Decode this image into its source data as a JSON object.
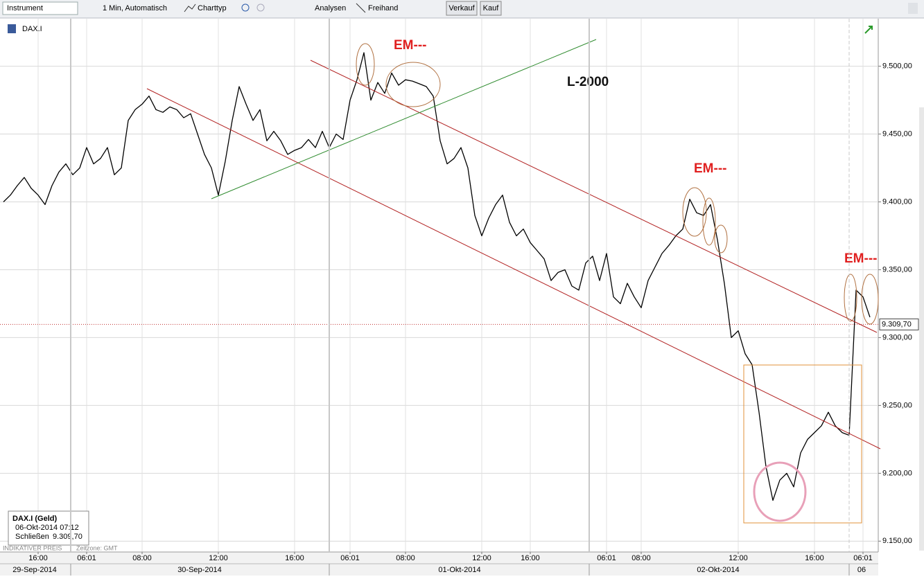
{
  "toolbar": {
    "instrument": "Instrument",
    "interval": "1 Min, Automatisch",
    "chart_type": "Charttyp",
    "analyses": "Analysen",
    "freehand": "Freihand",
    "sell": "Verkauf",
    "buy": "Kauf"
  },
  "chart_data": {
    "type": "line",
    "instrument": "DAX.I",
    "categories": [
      null,
      null,
      null,
      null,
      null,
      "16:00",
      null,
      null,
      null,
      null,
      null,
      null,
      "06:01",
      null,
      null,
      null,
      null,
      null,
      null,
      null,
      "08:00",
      null,
      null,
      null,
      null,
      null,
      null,
      null,
      null,
      null,
      null,
      "12:00",
      null,
      null,
      null,
      null,
      null,
      null,
      null,
      null,
      null,
      null,
      "16:00",
      null,
      null,
      null,
      null,
      null,
      null,
      null,
      "06:01",
      null,
      null,
      null,
      null,
      null,
      null,
      null,
      "08:00",
      null,
      null,
      null,
      null,
      null,
      null,
      null,
      null,
      null,
      null,
      "12:00",
      null,
      null,
      null,
      null,
      null,
      null,
      "16:00",
      null,
      null,
      null,
      null,
      null,
      null,
      null,
      null,
      null,
      null,
      "06:01",
      null,
      null,
      null,
      null,
      "08:00",
      null,
      null,
      null,
      null,
      null,
      null,
      null,
      null,
      null,
      null,
      null,
      null,
      null,
      "12:00",
      null,
      null,
      null,
      null,
      null,
      null,
      null,
      null,
      null,
      null,
      "16:00",
      null,
      null,
      null,
      null,
      null,
      null,
      "06:01",
      null
    ],
    "dates": [
      "29-Sep-2014",
      "30-Sep-2014",
      "01-Okt-2014",
      "02-Okt-2014",
      "06"
    ],
    "series": [
      {
        "name": "DAX.I (Geld)",
        "color": "#000000",
        "values": [
          9400,
          9405,
          9412,
          9418,
          9410,
          9405,
          9398,
          9412,
          9422,
          9428,
          9420,
          9425,
          9440,
          9428,
          9432,
          9440,
          9420,
          9425,
          9460,
          9468,
          9472,
          9478,
          9468,
          9466,
          9470,
          9468,
          9462,
          9465,
          9450,
          9435,
          9425,
          9405,
          9430,
          9460,
          9485,
          9472,
          9460,
          9468,
          9445,
          9452,
          9445,
          9435,
          9438,
          9440,
          9446,
          9440,
          9452,
          9440,
          9450,
          9446,
          9475,
          9490,
          9510,
          9475,
          9488,
          9480,
          9495,
          9486,
          9490,
          9489,
          9487,
          9485,
          9478,
          9445,
          9428,
          9432,
          9440,
          9425,
          9390,
          9375,
          9388,
          9398,
          9405,
          9385,
          9375,
          9380,
          9370,
          9364,
          9358,
          9342,
          9348,
          9350,
          9338,
          9335,
          9355,
          9360,
          9342,
          9362,
          9330,
          9325,
          9340,
          9330,
          9322,
          9342,
          9352,
          9362,
          9368,
          9375,
          9380,
          9402,
          9392,
          9390,
          9398,
          9372,
          9340,
          9300,
          9305,
          9288,
          9280,
          9245,
          9205,
          9180,
          9195,
          9200,
          9190,
          9215,
          9225,
          9230,
          9235,
          9245,
          9235,
          9230,
          9228,
          9335,
          9330,
          9315
        ]
      }
    ],
    "ylim": [
      9142,
      9535
    ],
    "yticks": [
      {
        "value": 9150,
        "label": "9.150,00"
      },
      {
        "value": 9200,
        "label": "9.200,00"
      },
      {
        "value": 9250,
        "label": "9.250,00"
      },
      {
        "value": 9300,
        "label": "9.300,00"
      },
      {
        "value": 9350,
        "label": "9.350,00"
      },
      {
        "value": 9400,
        "label": "9.400,00"
      },
      {
        "value": 9450,
        "label": "9.450,00"
      },
      {
        "value": 9500,
        "label": "9.500,00"
      }
    ],
    "current_price": {
      "value": 9309.7,
      "label": "9.309,70"
    },
    "grid": true,
    "annotations": [
      "EM---",
      "EM---",
      "EM---",
      "L-2000"
    ],
    "info_box": {
      "title": "DAX.I (Geld)",
      "time": "06-Okt-2014 07:12",
      "close_label": "Schließen",
      "close_value": "9.309,70"
    },
    "footer": {
      "price_note": "INDIKATIVER PREIS",
      "timezone": "Zeitzone: GMT"
    }
  }
}
